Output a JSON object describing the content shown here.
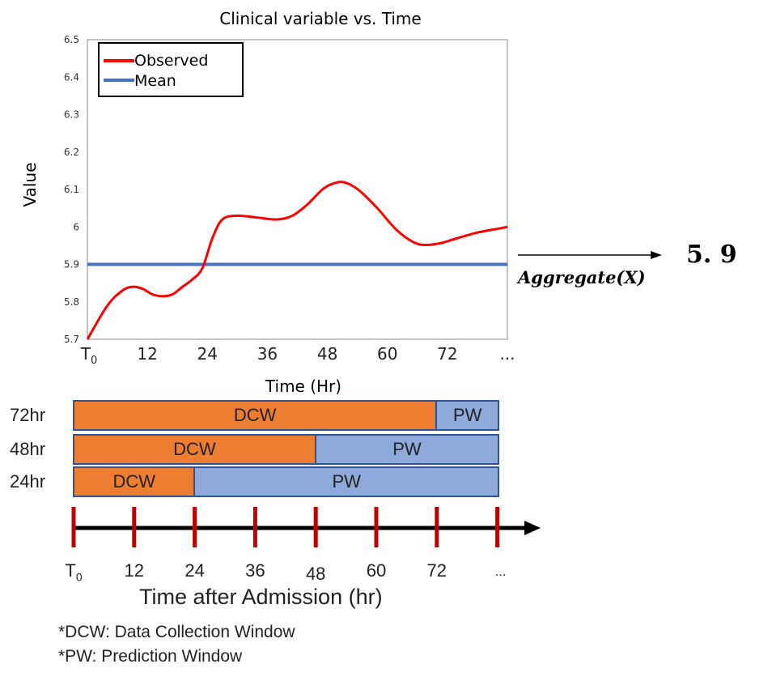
{
  "chart_data": {
    "type": "line",
    "title": "Clinical variable vs. Time",
    "xlabel": "Time (Hr)",
    "ylabel": "Value",
    "x_tick_labels": [
      "T0",
      "12",
      "24",
      "36",
      "48",
      "60",
      "72",
      "..."
    ],
    "x_ticks": [
      0,
      12,
      24,
      36,
      48,
      60,
      72,
      84
    ],
    "y_ticks": [
      "5.7",
      "5.8",
      "5.9",
      "6",
      "6.1",
      "6.2",
      "6.3",
      "6.4",
      "6.5"
    ],
    "ylim": [
      5.7,
      6.5
    ],
    "xlim": [
      0,
      84
    ],
    "legend_position": "top-left",
    "series": [
      {
        "name": "Observed",
        "color": "#ff0000",
        "x": [
          0,
          4,
          7,
          9,
          11,
          13,
          15,
          17,
          19,
          21,
          23,
          25,
          27,
          30,
          34,
          38,
          41,
          44,
          47,
          49,
          51,
          53,
          55,
          58,
          62,
          66,
          70,
          74,
          78,
          82,
          84
        ],
        "y": [
          5.7,
          5.79,
          5.83,
          5.84,
          5.835,
          5.82,
          5.815,
          5.82,
          5.84,
          5.86,
          5.89,
          5.97,
          6.02,
          6.03,
          6.025,
          6.02,
          6.03,
          6.06,
          6.1,
          6.115,
          6.12,
          6.11,
          6.09,
          6.05,
          5.99,
          5.955,
          5.955,
          5.97,
          5.985,
          5.995,
          6.0
        ]
      },
      {
        "name": "Mean",
        "color": "#4472c4",
        "x": [
          0,
          84
        ],
        "y": [
          5.9,
          5.9
        ]
      }
    ]
  },
  "aggregate": {
    "label": "Aggregate(X)",
    "result": "5. 9"
  },
  "windows": {
    "rows": [
      {
        "label": "72hr",
        "dcw_label": "DCW",
        "pw_label": "PW",
        "dcw_hours": 72
      },
      {
        "label": "48hr",
        "dcw_label": "DCW",
        "pw_label": "PW",
        "dcw_hours": 48
      },
      {
        "label": "24hr",
        "dcw_label": "DCW",
        "pw_label": "PW",
        "dcw_hours": 24
      }
    ],
    "total_hours": 84
  },
  "timeline": {
    "title": "Time after Admission (hr)",
    "tick_labels": [
      "T0",
      "12",
      "24",
      "36",
      "48",
      "60",
      "72",
      "..."
    ],
    "tick_color": "#c00000",
    "arrow_color": "#000000"
  },
  "footnotes": {
    "dcw": "*DCW: Data Collection Window",
    "pw": "*PW: Prediction Window"
  }
}
